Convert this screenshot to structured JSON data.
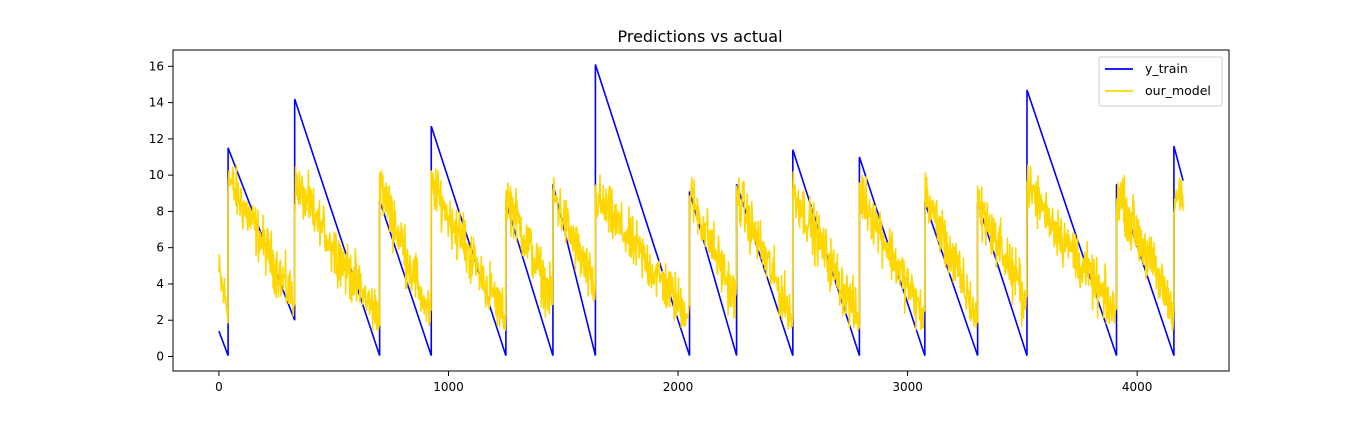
{
  "chart_data": {
    "type": "line",
    "title": "Predictions vs actual",
    "xlabel": "",
    "ylabel": "",
    "xlim": [
      -200,
      4400
    ],
    "ylim": [
      -0.8,
      16.9
    ],
    "xticks": [
      0,
      1000,
      2000,
      3000,
      4000
    ],
    "yticks": [
      0,
      2,
      4,
      6,
      8,
      10,
      12,
      14,
      16
    ],
    "grid": false,
    "legend_position": "top-right",
    "series": [
      {
        "name": "y_train",
        "color": "#0000ff",
        "x": [
          0,
          40,
          40,
          330,
          330,
          700,
          700,
          925,
          925,
          1250,
          1250,
          1455,
          1455,
          1640,
          1640,
          2050,
          2050,
          2255,
          2255,
          2500,
          2500,
          2790,
          2790,
          3075,
          3075,
          3305,
          3305,
          3520,
          3520,
          3910,
          3910,
          4160,
          4160,
          4200
        ],
        "y": [
          1.4,
          0.05,
          11.5,
          2.0,
          14.2,
          0.05,
          8.6,
          0.05,
          12.7,
          0.05,
          8.5,
          0.05,
          9.5,
          0.05,
          16.1,
          0.05,
          9.1,
          0.05,
          9.5,
          0.05,
          11.4,
          0.05,
          11.0,
          0.05,
          8.5,
          0.05,
          8.5,
          0.05,
          14.7,
          0.05,
          9.5,
          0.05,
          11.6,
          9.7
        ]
      },
      {
        "name": "our_model",
        "color": "#ffd700",
        "x_range": [
          0,
          4200
        ],
        "segments": [
          {
            "x0": 0,
            "x1": 40,
            "y0": 4.5,
            "y1": 2.5
          },
          {
            "x0": 40,
            "x1": 330,
            "y0": 9.8,
            "y1": 3.0
          },
          {
            "x0": 330,
            "x1": 700,
            "y0": 9.5,
            "y1": 2.0
          },
          {
            "x0": 700,
            "x1": 925,
            "y0": 9.5,
            "y1": 2.0
          },
          {
            "x0": 925,
            "x1": 1250,
            "y0": 9.5,
            "y1": 2.0
          },
          {
            "x0": 1250,
            "x1": 1455,
            "y0": 9.0,
            "y1": 3.0
          },
          {
            "x0": 1455,
            "x1": 1640,
            "y0": 9.0,
            "y1": 3.5
          },
          {
            "x0": 1640,
            "x1": 2050,
            "y0": 8.8,
            "y1": 2.2
          },
          {
            "x0": 2050,
            "x1": 2255,
            "y0": 9.0,
            "y1": 3.0
          },
          {
            "x0": 2255,
            "x1": 2500,
            "y0": 9.0,
            "y1": 2.0
          },
          {
            "x0": 2500,
            "x1": 2790,
            "y0": 9.2,
            "y1": 2.0
          },
          {
            "x0": 2790,
            "x1": 3075,
            "y0": 9.2,
            "y1": 2.0
          },
          {
            "x0": 3075,
            "x1": 3305,
            "y0": 9.0,
            "y1": 2.0
          },
          {
            "x0": 3305,
            "x1": 3520,
            "y0": 8.5,
            "y1": 3.0
          },
          {
            "x0": 3520,
            "x1": 3910,
            "y0": 9.5,
            "y1": 2.2
          },
          {
            "x0": 3910,
            "x1": 4160,
            "y0": 9.2,
            "y1": 2.5
          },
          {
            "x0": 4160,
            "x1": 4200,
            "y0": 8.8,
            "y1": 8.8
          }
        ],
        "noise_amplitude": 1.3
      }
    ]
  }
}
